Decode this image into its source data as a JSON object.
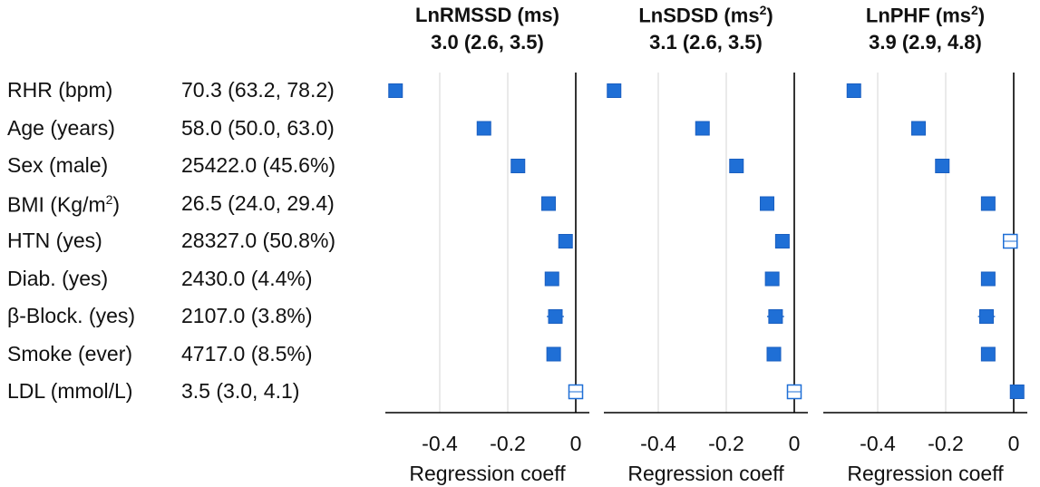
{
  "rows": [
    {
      "label": "RHR (bpm)",
      "value": "70.3 (63.2, 78.2)"
    },
    {
      "label": "Age (years)",
      "value": "58.0 (50.0, 63.0)"
    },
    {
      "label": "Sex (male)",
      "value": "25422.0 (45.6%)"
    },
    {
      "label": "BMI (Kg/m",
      "label_sup": "2",
      "label_tail": ")",
      "value": "26.5 (24.0, 29.4)"
    },
    {
      "label": "HTN (yes)",
      "value": "28327.0 (50.8%)"
    },
    {
      "label": "Diab. (yes)",
      "value": "2430.0 (4.4%)"
    },
    {
      "label": "β-Block. (yes)",
      "value": "2107.0 (3.8%)"
    },
    {
      "label": "Smoke (ever)",
      "value": "4717.0 (8.5%)"
    },
    {
      "label": "LDL (mmol/L)",
      "value": "3.5 (3.0, 4.1)"
    }
  ],
  "chart_data": [
    {
      "type": "scatter",
      "title": "LnRMSSD (ms)",
      "title_sup": "",
      "subtitle": "3.0 (2.6, 3.5)",
      "xlabel": "Regression coeff",
      "xlim": [
        -0.56,
        0.04
      ],
      "xticks": [
        "-0.4",
        "-0.2",
        "0"
      ],
      "xtick_values": [
        -0.4,
        -0.2,
        0
      ],
      "grid": "vertical",
      "marker_color": "#1f6fd6",
      "points": [
        {
          "y": "RHR (bpm)",
          "x": -0.53,
          "ci": [
            -0.535,
            -0.525
          ],
          "significant": true
        },
        {
          "y": "Age (years)",
          "x": -0.27,
          "ci": [
            -0.275,
            -0.265
          ],
          "significant": true
        },
        {
          "y": "Sex (male)",
          "x": -0.17,
          "ci": [
            -0.175,
            -0.165
          ],
          "significant": true
        },
        {
          "y": "BMI (Kg/m2)",
          "x": -0.08,
          "ci": [
            -0.085,
            -0.075
          ],
          "significant": true
        },
        {
          "y": "HTN (yes)",
          "x": -0.03,
          "ci": [
            -0.035,
            -0.025
          ],
          "significant": true
        },
        {
          "y": "Diab. (yes)",
          "x": -0.07,
          "ci": [
            -0.09,
            -0.05
          ],
          "significant": true
        },
        {
          "y": "β-Block. (yes)",
          "x": -0.06,
          "ci": [
            -0.085,
            -0.035
          ],
          "significant": true
        },
        {
          "y": "Smoke (ever)",
          "x": -0.065,
          "ci": [
            -0.075,
            -0.055
          ],
          "significant": true
        },
        {
          "y": "LDL (mmol/L)",
          "x": 0.0,
          "ci": [
            -0.005,
            0.005
          ],
          "significant": false
        }
      ]
    },
    {
      "type": "scatter",
      "title": "LnSDSD (ms",
      "title_sup": "2",
      "subtitle": "3.1 (2.6, 3.5)",
      "xlabel": "Regression coeff",
      "xlim": [
        -0.56,
        0.04
      ],
      "xticks": [
        "-0.4",
        "-0.2",
        "0"
      ],
      "xtick_values": [
        -0.4,
        -0.2,
        0
      ],
      "grid": "vertical",
      "marker_color": "#1f6fd6",
      "points": [
        {
          "y": "RHR (bpm)",
          "x": -0.53,
          "ci": [
            -0.535,
            -0.525
          ],
          "significant": true
        },
        {
          "y": "Age (years)",
          "x": -0.27,
          "ci": [
            -0.275,
            -0.265
          ],
          "significant": true
        },
        {
          "y": "Sex (male)",
          "x": -0.17,
          "ci": [
            -0.175,
            -0.165
          ],
          "significant": true
        },
        {
          "y": "BMI (Kg/m2)",
          "x": -0.08,
          "ci": [
            -0.085,
            -0.075
          ],
          "significant": true
        },
        {
          "y": "HTN (yes)",
          "x": -0.035,
          "ci": [
            -0.04,
            -0.03
          ],
          "significant": true
        },
        {
          "y": "Diab. (yes)",
          "x": -0.065,
          "ci": [
            -0.085,
            -0.045
          ],
          "significant": true
        },
        {
          "y": "β-Block. (yes)",
          "x": -0.055,
          "ci": [
            -0.08,
            -0.03
          ],
          "significant": true
        },
        {
          "y": "Smoke (ever)",
          "x": -0.06,
          "ci": [
            -0.07,
            -0.05
          ],
          "significant": true
        },
        {
          "y": "LDL (mmol/L)",
          "x": 0.0,
          "ci": [
            -0.005,
            0.005
          ],
          "significant": false
        }
      ]
    },
    {
      "type": "scatter",
      "title": "LnPHF (ms",
      "title_sup": "2",
      "subtitle": "3.9 (2.9, 4.8)",
      "xlabel": "Regression coeff",
      "xlim": [
        -0.56,
        0.04
      ],
      "xticks": [
        "-0.4",
        "-0.2",
        "0"
      ],
      "xtick_values": [
        -0.4,
        -0.2,
        0
      ],
      "grid": "vertical",
      "marker_color": "#1f6fd6",
      "points": [
        {
          "y": "RHR (bpm)",
          "x": -0.47,
          "ci": [
            -0.475,
            -0.465
          ],
          "significant": true
        },
        {
          "y": "Age (years)",
          "x": -0.28,
          "ci": [
            -0.285,
            -0.275
          ],
          "significant": true
        },
        {
          "y": "Sex (male)",
          "x": -0.21,
          "ci": [
            -0.215,
            -0.205
          ],
          "significant": true
        },
        {
          "y": "BMI (Kg/m2)",
          "x": -0.075,
          "ci": [
            -0.08,
            -0.07
          ],
          "significant": true
        },
        {
          "y": "HTN (yes)",
          "x": -0.01,
          "ci": [
            -0.02,
            0.0
          ],
          "significant": false
        },
        {
          "y": "Diab. (yes)",
          "x": -0.075,
          "ci": [
            -0.095,
            -0.055
          ],
          "significant": true
        },
        {
          "y": "β-Block. (yes)",
          "x": -0.08,
          "ci": [
            -0.105,
            -0.055
          ],
          "significant": true
        },
        {
          "y": "Smoke (ever)",
          "x": -0.075,
          "ci": [
            -0.085,
            -0.065
          ],
          "significant": true
        },
        {
          "y": "LDL (mmol/L)",
          "x": 0.01,
          "ci": [
            0.005,
            0.015
          ],
          "significant": true
        }
      ]
    }
  ]
}
